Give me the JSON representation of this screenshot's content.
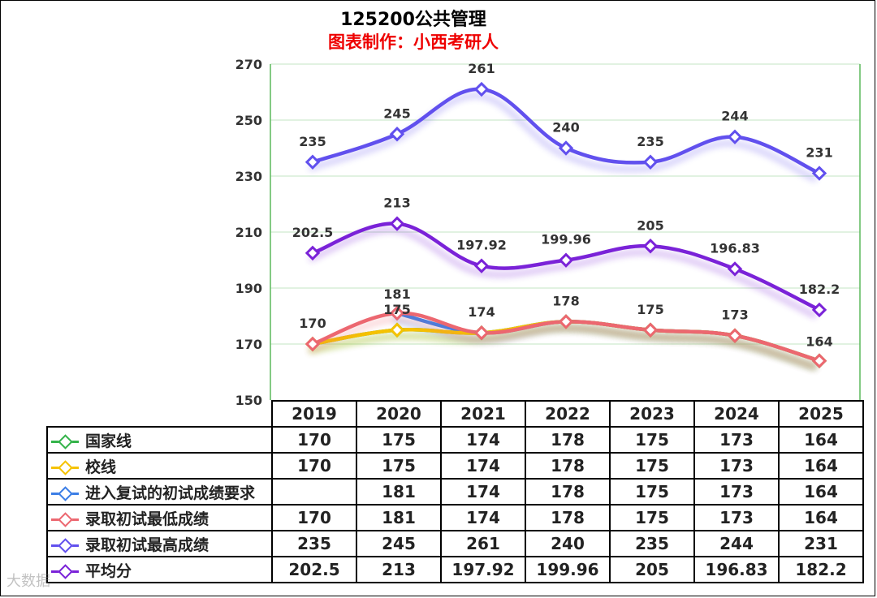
{
  "title": "125200公共管理",
  "subtitle": "图表制作：小西考研人",
  "watermark": "大数据",
  "chart_data": {
    "type": "line",
    "categories": [
      "2019",
      "2020",
      "2021",
      "2022",
      "2023",
      "2024",
      "2025"
    ],
    "ylim": [
      150,
      270
    ],
    "yticks": [
      150,
      170,
      190,
      210,
      230,
      250,
      270
    ],
    "smooth": true,
    "grid": true,
    "series": [
      {
        "name": "国家线",
        "color": "#34b34a",
        "values": [
          170,
          175,
          174,
          178,
          175,
          173,
          164
        ]
      },
      {
        "name": "校线",
        "color": "#f5c200",
        "values": [
          170,
          175,
          174,
          178,
          175,
          173,
          164
        ]
      },
      {
        "name": "进入复试的初试成绩要求",
        "color": "#3b7ee6",
        "values": [
          null,
          181,
          174,
          178,
          175,
          173,
          164
        ]
      },
      {
        "name": "录取初试最低成绩",
        "color": "#ec6770",
        "values": [
          170,
          181,
          174,
          178,
          175,
          173,
          164
        ]
      },
      {
        "name": "录取初试最高成绩",
        "color": "#6150ee",
        "values": [
          235,
          245,
          261,
          240,
          235,
          244,
          231
        ]
      },
      {
        "name": "平均分",
        "color": "#7a22d8",
        "values": [
          202.5,
          213,
          197.92,
          199.96,
          205,
          196.83,
          182.2
        ]
      }
    ],
    "point_labels": [
      {
        "series": 4,
        "labels": [
          "235",
          "245",
          "261",
          "240",
          "235",
          "244",
          "231"
        ]
      },
      {
        "series": 5,
        "labels": [
          "202.5",
          "213",
          "197.92",
          "199.96",
          "205",
          "196.83",
          "182.2"
        ]
      },
      {
        "series": 3,
        "labels": [
          "170",
          "181",
          "174",
          "178",
          "175",
          "173",
          "164"
        ]
      },
      {
        "series": 1,
        "labels": [
          "",
          "175",
          "",
          "",
          "",
          "",
          ""
        ]
      }
    ]
  },
  "table": {
    "rows": [
      {
        "label": "国家线",
        "cells": [
          "170",
          "175",
          "174",
          "178",
          "175",
          "173",
          "164"
        ]
      },
      {
        "label": "校线",
        "cells": [
          "170",
          "175",
          "174",
          "178",
          "175",
          "173",
          "164"
        ]
      },
      {
        "label": "进入复试的初试成绩要求",
        "cells": [
          "",
          "181",
          "174",
          "178",
          "175",
          "173",
          "164"
        ]
      },
      {
        "label": "录取初试最低成绩",
        "cells": [
          "170",
          "181",
          "174",
          "178",
          "175",
          "173",
          "164"
        ]
      },
      {
        "label": "录取初试最高成绩",
        "cells": [
          "235",
          "245",
          "261",
          "240",
          "235",
          "244",
          "231"
        ]
      },
      {
        "label": "平均分",
        "cells": [
          "202.5",
          "213",
          "197.92",
          "199.96",
          "205",
          "196.83",
          "182.2"
        ]
      }
    ]
  }
}
